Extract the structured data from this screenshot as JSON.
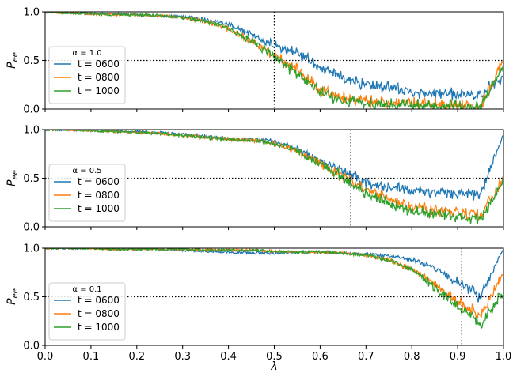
{
  "chart_data": {
    "type": "line",
    "xlabel": "λ",
    "ylabel": "P_ee",
    "xlim": [
      0.0,
      1.0
    ],
    "ylim": [
      0.0,
      1.0
    ],
    "x_ticks": [
      "0.0",
      "0.1",
      "0.2",
      "0.3",
      "0.4",
      "0.5",
      "0.6",
      "0.7",
      "0.8",
      "0.9",
      "1.0"
    ],
    "y_ticks": [
      "0.0",
      "0.5",
      "1.0"
    ],
    "grid": false,
    "legend_placement": "left",
    "colors": {
      "t0600": "#1f77b4",
      "t0800": "#ff7f0e",
      "t1000": "#2ca02c",
      "reference": "#000000"
    },
    "panels": [
      {
        "legend_title": "α = 1.0",
        "vertical_marker": 0.5,
        "horizontal_marker": 0.5,
        "series": [
          {
            "name": "t = 0600",
            "color": "#1f77b4",
            "x": [
              0,
              0.05,
              0.1,
              0.15,
              0.2,
              0.25,
              0.3,
              0.35,
              0.4,
              0.45,
              0.5,
              0.55,
              0.6,
              0.65,
              0.7,
              0.75,
              0.8,
              0.85,
              0.9,
              0.95,
              1.0
            ],
            "y": [
              1.0,
              0.99,
              0.98,
              0.98,
              0.97,
              0.96,
              0.95,
              0.92,
              0.88,
              0.76,
              0.65,
              0.58,
              0.42,
              0.33,
              0.25,
              0.22,
              0.18,
              0.16,
              0.15,
              0.14,
              0.35
            ]
          },
          {
            "name": "t = 0800",
            "color": "#ff7f0e",
            "x": [
              0,
              0.05,
              0.1,
              0.15,
              0.2,
              0.25,
              0.3,
              0.35,
              0.4,
              0.45,
              0.5,
              0.55,
              0.6,
              0.65,
              0.7,
              0.75,
              0.8,
              0.85,
              0.9,
              0.95,
              1.0
            ],
            "y": [
              1.0,
              0.99,
              0.98,
              0.97,
              0.97,
              0.96,
              0.94,
              0.9,
              0.83,
              0.7,
              0.56,
              0.4,
              0.2,
              0.12,
              0.08,
              0.06,
              0.06,
              0.05,
              0.04,
              0.03,
              0.5
            ]
          },
          {
            "name": "t = 1000",
            "color": "#2ca02c",
            "x": [
              0,
              0.05,
              0.1,
              0.15,
              0.2,
              0.25,
              0.3,
              0.35,
              0.4,
              0.45,
              0.5,
              0.55,
              0.6,
              0.65,
              0.7,
              0.75,
              0.8,
              0.85,
              0.9,
              0.95,
              1.0
            ],
            "y": [
              1.0,
              0.99,
              0.98,
              0.97,
              0.97,
              0.96,
              0.94,
              0.9,
              0.83,
              0.69,
              0.54,
              0.36,
              0.17,
              0.09,
              0.06,
              0.04,
              0.04,
              0.03,
              0.03,
              0.02,
              0.45
            ]
          }
        ]
      },
      {
        "legend_title": "α = 0.5",
        "vertical_marker": 0.667,
        "horizontal_marker": 0.5,
        "series": [
          {
            "name": "t = 0600",
            "color": "#1f77b4",
            "x": [
              0,
              0.05,
              0.1,
              0.15,
              0.2,
              0.25,
              0.3,
              0.35,
              0.4,
              0.45,
              0.5,
              0.55,
              0.6,
              0.65,
              0.7,
              0.75,
              0.8,
              0.85,
              0.9,
              0.95,
              1.0
            ],
            "y": [
              1.0,
              1.0,
              0.99,
              0.99,
              0.98,
              0.97,
              0.95,
              0.93,
              0.9,
              0.9,
              0.88,
              0.8,
              0.67,
              0.57,
              0.46,
              0.4,
              0.37,
              0.36,
              0.35,
              0.33,
              0.95
            ]
          },
          {
            "name": "t = 0800",
            "color": "#ff7f0e",
            "x": [
              0,
              0.05,
              0.1,
              0.15,
              0.2,
              0.25,
              0.3,
              0.35,
              0.4,
              0.45,
              0.5,
              0.55,
              0.6,
              0.65,
              0.7,
              0.75,
              0.8,
              0.85,
              0.9,
              0.95,
              1.0
            ],
            "y": [
              1.0,
              1.0,
              0.99,
              0.98,
              0.97,
              0.96,
              0.94,
              0.92,
              0.9,
              0.89,
              0.86,
              0.78,
              0.65,
              0.52,
              0.38,
              0.28,
              0.21,
              0.17,
              0.14,
              0.12,
              0.5
            ]
          },
          {
            "name": "t = 1000",
            "color": "#2ca02c",
            "x": [
              0,
              0.05,
              0.1,
              0.15,
              0.2,
              0.25,
              0.3,
              0.35,
              0.4,
              0.45,
              0.5,
              0.55,
              0.6,
              0.65,
              0.7,
              0.75,
              0.8,
              0.85,
              0.9,
              0.95,
              1.0
            ],
            "y": [
              1.0,
              1.0,
              0.99,
              0.98,
              0.97,
              0.96,
              0.94,
              0.92,
              0.9,
              0.89,
              0.86,
              0.78,
              0.64,
              0.5,
              0.35,
              0.24,
              0.17,
              0.13,
              0.1,
              0.08,
              0.45
            ]
          }
        ]
      },
      {
        "legend_title": "α = 0.1",
        "vertical_marker": 0.909,
        "horizontal_marker": 0.5,
        "series": [
          {
            "name": "t = 0600",
            "color": "#1f77b4",
            "x": [
              0,
              0.05,
              0.1,
              0.15,
              0.2,
              0.25,
              0.3,
              0.35,
              0.4,
              0.45,
              0.5,
              0.55,
              0.6,
              0.65,
              0.7,
              0.75,
              0.8,
              0.85,
              0.9,
              0.95,
              1.0
            ],
            "y": [
              1.0,
              1.0,
              1.0,
              0.99,
              0.99,
              0.99,
              0.98,
              0.97,
              0.96,
              0.95,
              0.95,
              0.96,
              0.96,
              0.95,
              0.94,
              0.92,
              0.88,
              0.8,
              0.65,
              0.5,
              1.0
            ]
          },
          {
            "name": "t = 0800",
            "color": "#ff7f0e",
            "x": [
              0,
              0.05,
              0.1,
              0.15,
              0.2,
              0.25,
              0.3,
              0.35,
              0.4,
              0.45,
              0.5,
              0.55,
              0.6,
              0.65,
              0.7,
              0.75,
              0.8,
              0.85,
              0.9,
              0.95,
              1.0
            ],
            "y": [
              1.0,
              1.0,
              1.0,
              0.99,
              0.99,
              0.99,
              0.99,
              0.98,
              0.98,
              0.98,
              0.97,
              0.96,
              0.96,
              0.95,
              0.93,
              0.88,
              0.78,
              0.62,
              0.45,
              0.3,
              0.75
            ]
          },
          {
            "name": "t = 1000",
            "color": "#2ca02c",
            "x": [
              0,
              0.05,
              0.1,
              0.15,
              0.2,
              0.25,
              0.3,
              0.35,
              0.4,
              0.45,
              0.5,
              0.55,
              0.6,
              0.65,
              0.7,
              0.75,
              0.8,
              0.85,
              0.9,
              0.95,
              1.0
            ],
            "y": [
              1.0,
              1.0,
              1.0,
              0.99,
              0.99,
              0.99,
              0.99,
              0.98,
              0.98,
              0.98,
              0.97,
              0.96,
              0.96,
              0.95,
              0.93,
              0.88,
              0.78,
              0.6,
              0.4,
              0.22,
              0.55
            ]
          }
        ]
      }
    ]
  }
}
